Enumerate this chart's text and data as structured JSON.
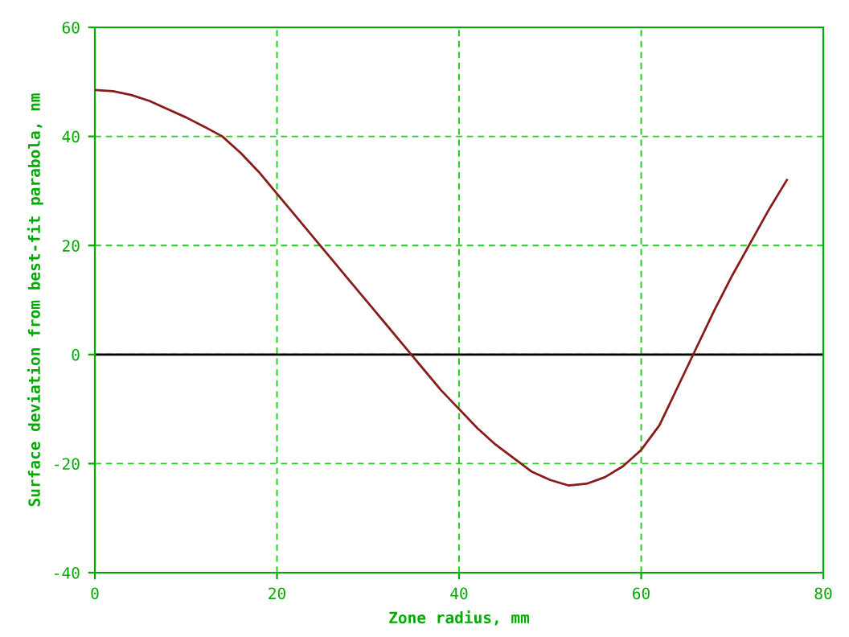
{
  "chart_data": {
    "type": "line",
    "xlabel": "Zone radius, mm",
    "ylabel": "Surface deviation from best-fit parabola, nm",
    "x": [
      0,
      2,
      4,
      6,
      8,
      10,
      12,
      14,
      16,
      18,
      20,
      22,
      24,
      26,
      28,
      30,
      32,
      34,
      36,
      38,
      40,
      42,
      44,
      46,
      48,
      50,
      52,
      54,
      56,
      58,
      60,
      62,
      64,
      66,
      68,
      70,
      72,
      74,
      76
    ],
    "series": [
      {
        "color": "#8b1a1a",
        "values": [
          48.5,
          48.3,
          47.6,
          46.5,
          45,
          43.5,
          41.8,
          40,
          37,
          33.5,
          29.5,
          25.5,
          21.5,
          17.5,
          13.5,
          9.5,
          5.5,
          1.5,
          -2.5,
          -6.5,
          -10,
          -13.5,
          -16.5,
          -19,
          -21.5,
          -23,
          -24,
          -23.7,
          -22.5,
          -20.5,
          -17.5,
          -13,
          -6,
          1,
          8,
          14.5,
          20.5,
          26.5,
          32
        ]
      }
    ],
    "xlim": [
      0,
      80
    ],
    "ylim": [
      -40,
      60
    ],
    "xticks": [
      0,
      20,
      40,
      60,
      80
    ],
    "yticks": [
      -40,
      -20,
      0,
      20,
      40,
      60
    ],
    "ref_lines": [
      {
        "axis": "y",
        "value": 0,
        "color": "#000000"
      }
    ],
    "grid": true,
    "marker": "none",
    "line_style": "solid"
  }
}
